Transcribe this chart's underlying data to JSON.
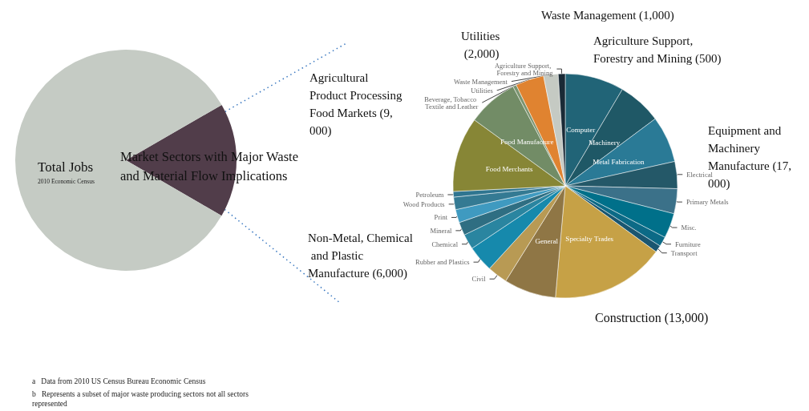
{
  "chart_data": [
    {
      "type": "pie",
      "categories": [
        "Market Sectors with Major Waste and Material Flow Implications",
        "Total Jobs"
      ],
      "values": [
        16.7,
        83.3
      ],
      "colors": [
        "#513d4a",
        "#c5cbc4"
      ],
      "annotations": [
        "2010 Economic Census",
        "a   Data from 2010 US Census Bureau Economic Census",
        "b   Represents a subset of major waste producing sectors not all sectors represented"
      ]
    },
    {
      "type": "pie",
      "categories": [
        "Computer",
        "Machinery",
        "Metal Fabrication",
        "Electrical",
        "Primary Metals",
        "Misc.",
        "Furniture",
        "Transport",
        "Specialty Trades",
        "General",
        "Civil",
        "Rubber and Plastics",
        "Chemical",
        "Mineral",
        "Print",
        "Wood Products",
        "Petroleum",
        "Food Merchants",
        "Food Manufacture",
        "Beverage, Tobacco Textile and Leather",
        "Utilities",
        "Waste Management",
        "Agriculture Support, Forestry and Mining"
      ],
      "values": [
        8.5,
        6.3,
        6.7,
        3.9,
        3.6,
        3.6,
        1.4,
        1.0,
        16.4,
        7.5,
        2.9,
        3.8,
        2.2,
        1.9,
        1.9,
        1.8,
        0.8,
        10.8,
        7.3,
        0.5,
        4.1,
        2.1,
        1.0
      ],
      "colors": [
        "#216477",
        "#1f5866",
        "#2a7a96",
        "#245868",
        "#3b7189",
        "#00708a",
        "#0c6a86",
        "#1a5670",
        "#c6a146",
        "#8f7645",
        "#b89a54",
        "#1689ac",
        "#2a85a0",
        "#2f6e82",
        "#3f9ac0",
        "#347a93",
        "#2f7590",
        "#878636",
        "#728c66",
        "#7a9470",
        "#e08330",
        "#c5cac3",
        "#1a2a36"
      ],
      "annotations": [
        "Equipment and Machinery Manufacture (17,000)",
        "Construction (13,000)",
        "Non-Metal, Chemical and Plastic Manufacture (6,000)",
        "Agricultural Product Processing Food Markets (9,000)",
        "Utilities (2,000)",
        "Waste Management (1,000)",
        "Agriculture Support, Forestry and Mining (500)"
      ]
    }
  ]
}
